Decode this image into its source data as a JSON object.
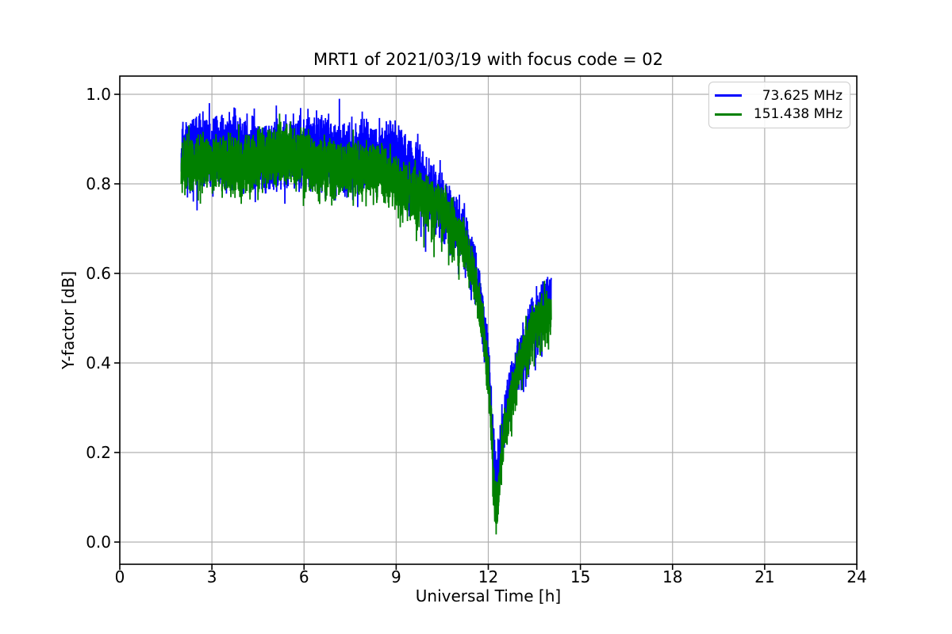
{
  "chart_data": {
    "type": "line",
    "title": "MRT1 of 2021/03/19 with focus code = 02",
    "xlabel": "Universal Time [h]",
    "ylabel": "Y-factor [dB]",
    "xlim": [
      0,
      24
    ],
    "ylim": [
      -0.0496,
      1.0407
    ],
    "xticks": [
      0,
      3,
      6,
      9,
      12,
      15,
      18,
      21,
      24
    ],
    "xtick_labels": [
      "0",
      "3",
      "6",
      "9",
      "12",
      "15",
      "18",
      "21",
      "24"
    ],
    "yticks": [
      0.0,
      0.2,
      0.4,
      0.6,
      0.8,
      1.0
    ],
    "ytick_labels": [
      "0.0",
      "0.2",
      "0.4",
      "0.6",
      "0.8",
      "1.0"
    ],
    "grid": true,
    "grid_color": "#b0b0b0",
    "axis_color": "#000000",
    "background_color": "#ffffff",
    "legend_position": "upper right",
    "series": [
      {
        "name": "73.625 MHz",
        "color": "#0000ff",
        "offset": 0.022,
        "amp_scale": 1.25,
        "clamp": [
          0.08,
          0.99
        ],
        "phase": 0.0,
        "dip_depth": 0.0
      },
      {
        "name": "151.438 MHz",
        "color": "#008000",
        "offset": -0.005,
        "amp_scale": 1.0,
        "clamp": [
          0.0,
          0.978
        ],
        "phase": 1.7,
        "dip_depth": 0.05
      }
    ],
    "t_range_hours": [
      2.0,
      14.05
    ],
    "envelope_t_center_amp": [
      [
        2.0,
        0.845,
        0.075
      ],
      [
        3.5,
        0.852,
        0.075
      ],
      [
        5.0,
        0.86,
        0.076
      ],
      [
        6.5,
        0.855,
        0.074
      ],
      [
        8.0,
        0.842,
        0.071
      ],
      [
        9.0,
        0.822,
        0.068
      ],
      [
        9.7,
        0.795,
        0.066
      ],
      [
        10.3,
        0.76,
        0.063
      ],
      [
        10.8,
        0.715,
        0.06
      ],
      [
        11.2,
        0.66,
        0.058
      ],
      [
        11.5,
        0.6,
        0.055
      ],
      [
        11.8,
        0.5,
        0.052
      ],
      [
        12.0,
        0.38,
        0.055
      ],
      [
        12.1,
        0.27,
        0.06
      ],
      [
        12.2,
        0.155,
        0.066
      ],
      [
        12.3,
        0.13,
        0.068
      ],
      [
        12.45,
        0.225,
        0.06
      ],
      [
        12.7,
        0.32,
        0.058
      ],
      [
        13.0,
        0.395,
        0.06
      ],
      [
        13.4,
        0.465,
        0.06
      ],
      [
        13.8,
        0.505,
        0.06
      ],
      [
        14.05,
        0.515,
        0.06
      ]
    ],
    "lower_fringe_t_depth": [
      [
        2.0,
        0.02
      ],
      [
        6.5,
        0.025
      ],
      [
        8.0,
        0.04
      ],
      [
        9.5,
        0.055
      ],
      [
        10.5,
        0.07
      ],
      [
        11.2,
        0.055
      ],
      [
        11.8,
        0.045
      ],
      [
        12.3,
        0.04
      ],
      [
        12.8,
        0.05
      ],
      [
        13.4,
        0.06
      ],
      [
        14.05,
        0.065
      ]
    ],
    "dip": {
      "center_hours": 12.26,
      "width_hours": 0.09,
      "min_value": 0.0
    },
    "noise": {
      "seed": 1337,
      "t_step": 0.004,
      "spike_prob": 0.07,
      "spike_gain": 1.5,
      "down_prob": 0.15
    }
  }
}
